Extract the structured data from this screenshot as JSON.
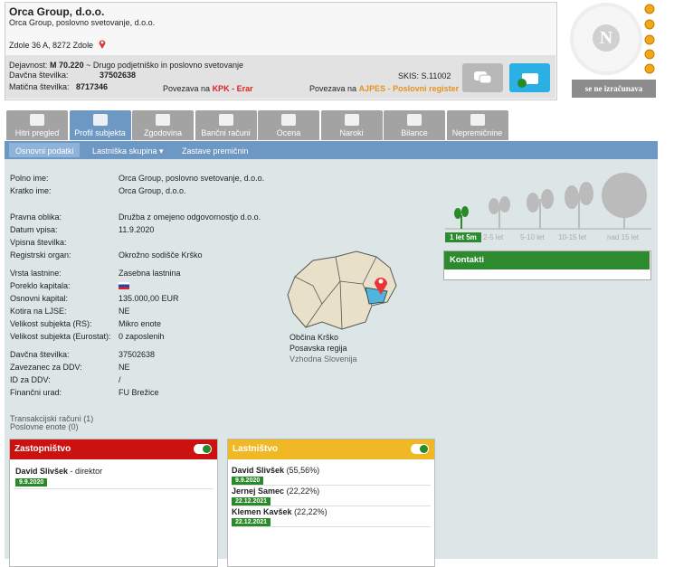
{
  "header": {
    "name": "Orca Group, d.o.o.",
    "full_name": "Orca Group, poslovno svetovanje, d.o.o.",
    "address": "Zdole 36 A, 8272 Zdole",
    "activity_label": "Dejavnost:",
    "activity_code": "M 70.220",
    "activity_text": "~ Drugo podjetniško in poslovno svetovanje",
    "tax_label": "Davčna številka:",
    "tax_number": "37502638",
    "reg_label": "Matična številka:",
    "reg_number": "8717346",
    "kpk_prefix": "Povezava na",
    "kpk_link": "KPK - Erar",
    "skis": "SKIS: S.11002",
    "ajpes_prefix": "Povezava na",
    "ajpes_link": "AJPES - Poslovni register"
  },
  "rating": {
    "logo": "N",
    "status": "se ne izračunava"
  },
  "tabs": [
    "Hitri pregled",
    "Profil subjekta",
    "Zgodovina",
    "Bančni računi",
    "Ocena",
    "Naroki",
    "Bilance",
    "Nepremičnine"
  ],
  "subtabs": [
    "Osnovni podatki",
    "Lastniška skupina ▾",
    "Zastave premičnin"
  ],
  "fields": [
    [
      {
        "label": "Polno ime:",
        "value": "Orca Group, poslovno svetovanje, d.o.o."
      },
      {
        "label": "Kratko ime:",
        "value": "Orca Group, d.o.o."
      }
    ],
    [
      {
        "label": "Pravna oblika:",
        "value": "Družba z omejeno odgovornostjo d.o.o."
      },
      {
        "label": "Datum vpisa:",
        "value": "11.9.2020"
      },
      {
        "label": "Vpisna številka:"
      },
      {
        "label": "Registrski organ:",
        "value": "Okrožno sodišče Krško"
      }
    ],
    [
      {
        "label": "Vrsta lastnine:",
        "value": "Zasebna lastnina"
      },
      {
        "label": "Poreklo kapitala:"
      },
      {
        "label": "Osnovni kapital:",
        "value": "135.000,00 EUR"
      },
      {
        "label": "Kotira na LJSE:",
        "value": "NE"
      },
      {
        "label": "Velikost subjekta (RS):",
        "value": "Mikro enote"
      },
      {
        "label": "Velikost subjekta (Eurostat):",
        "value": "0 zaposlenih"
      }
    ],
    [
      {
        "label": "Davčna številka:",
        "value": "37502638"
      },
      {
        "label": "Zavezanec za DDV:",
        "value": "NE"
      },
      {
        "label": "ID za DDV:",
        "value": "/"
      },
      {
        "label": "Finančni urad:",
        "value": "FU Brežice"
      }
    ]
  ],
  "map": {
    "municipality": "Občina Krško",
    "region": "Posavska regija",
    "cohesion": "Vzhodna Slovenija"
  },
  "age": [
    "1 let 5m",
    "2-5 let",
    "5-10 let",
    "10-15 let",
    "nad 15 let"
  ],
  "contacts": {
    "title": "Kontakti"
  },
  "links": [
    "Transakcijski računi (1)",
    "Poslovne enote (0)"
  ],
  "representation": {
    "title": "Zastopništvo",
    "people": [
      {
        "name": "David Slivšek",
        "role": "- direktor",
        "date": "9.9.2020"
      }
    ]
  },
  "ownership": {
    "title": "Lastništvo",
    "owners": [
      {
        "name": "David Slivšek",
        "share": "(55,56%)",
        "date": "9.9.2020"
      },
      {
        "name": "Jernej Samec",
        "share": "(22,22%)",
        "date": "22.12.2021"
      },
      {
        "name": "Klemen Kavšek",
        "share": "(22,22%)",
        "date": "22.12.2021"
      }
    ]
  }
}
